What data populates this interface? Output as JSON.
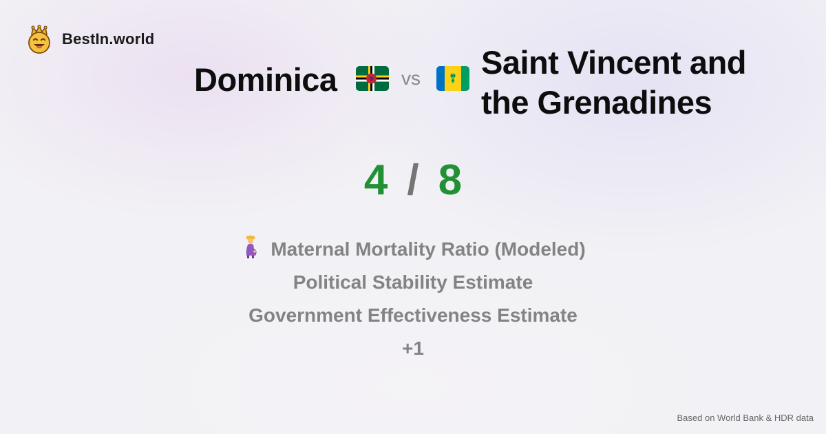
{
  "brand": {
    "name": "BestIn.world",
    "logo_icon": "crowned-smiley-icon"
  },
  "comparison": {
    "country_a": "Dominica",
    "country_b_line1": "Saint Vincent and",
    "country_b_line2": "the Grenadines",
    "vs_label": "vs",
    "flag_a_icon": "dominica-flag-icon",
    "flag_b_icon": "saint-vincent-flag-icon"
  },
  "score": {
    "a": "4",
    "separator": "/",
    "b": "8",
    "color": "#219133"
  },
  "metrics": [
    {
      "label": "Maternal Mortality Ratio (Modeled)",
      "icon": "pregnant-woman-icon"
    },
    {
      "label": "Political Stability Estimate"
    },
    {
      "label": "Government Effectiveness Estimate"
    },
    {
      "label": "+1"
    }
  ],
  "footer": {
    "source": "Based on World Bank & HDR data"
  }
}
